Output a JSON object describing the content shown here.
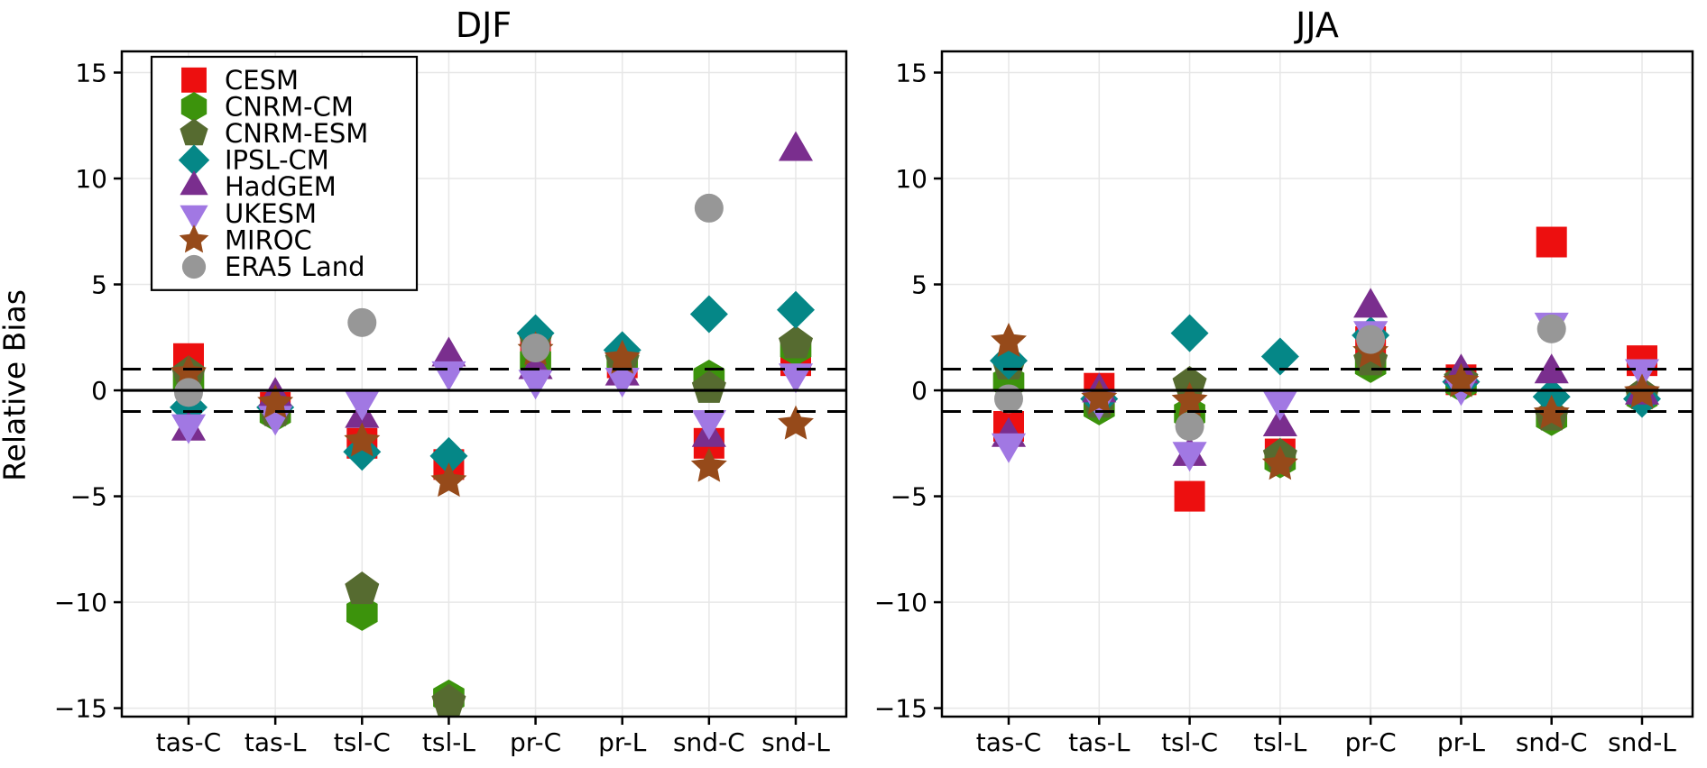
{
  "figure": {
    "ylabel": "Relative Bias",
    "background_color": "#ffffff",
    "axis_color": "#000000",
    "grid_color": "#e7e7e7"
  },
  "legend": {
    "position": "upper-left",
    "entries": [
      "CESM",
      "CNRM-CM",
      "CNRM-ESM",
      "IPSL-CM",
      "HadGEM",
      "UKESM",
      "MIROC",
      "ERA5 Land"
    ]
  },
  "chart_data": [
    {
      "type": "scatter",
      "title": "DJF",
      "ylabel": "Relative Bias",
      "categories": [
        "tas-C",
        "tas-L",
        "tsl-C",
        "tsl-L",
        "pr-C",
        "pr-L",
        "snd-C",
        "snd-L"
      ],
      "ylim": [
        -15.4,
        16.0
      ],
      "yticks": [
        15,
        10,
        5,
        0,
        -5,
        -10,
        -15
      ],
      "grid": true,
      "reference_lines": {
        "solid_y": 0,
        "dashed_y": [
          1,
          -1
        ]
      },
      "series": [
        {
          "name": "CESM",
          "marker": "square",
          "color": "#ed0f0f",
          "values": [
            1.5,
            -0.8,
            -2.5,
            -3.5,
            1.7,
            1.3,
            -2.5,
            1.4
          ]
        },
        {
          "name": "CNRM-CM",
          "marker": "hexagon",
          "color": "#3c930c",
          "values": [
            0.5,
            -1.1,
            -10.5,
            -14.5,
            1.4,
            1.5,
            0.6,
            2.0
          ]
        },
        {
          "name": "CNRM-ESM",
          "marker": "pentagon",
          "color": "#566b30",
          "values": [
            0.8,
            -1.0,
            -9.4,
            -14.7,
            2.4,
            1.4,
            0.1,
            2.2
          ]
        },
        {
          "name": "IPSL-CM",
          "marker": "diamond",
          "color": "#058787",
          "values": [
            -0.8,
            -0.8,
            -2.9,
            -3.1,
            2.7,
            1.9,
            3.6,
            3.8
          ]
        },
        {
          "name": "HadGEM",
          "marker": "triangle-up",
          "color": "#7a2e8e",
          "values": [
            -1.9,
            -0.3,
            -1.3,
            1.6,
            1.0,
            0.7,
            -2.2,
            11.3
          ]
        },
        {
          "name": "UKESM",
          "marker": "triangle-down",
          "color": "#a178e3",
          "values": [
            -1.6,
            -1.2,
            -0.5,
            0.9,
            0.5,
            0.6,
            -1.4,
            0.8
          ]
        },
        {
          "name": "MIROC",
          "marker": "star",
          "color": "#964a1a",
          "values": [
            0.8,
            -0.6,
            -2.4,
            -4.3,
            1.9,
            1.5,
            -3.6,
            -1.6
          ]
        },
        {
          "name": "ERA5 Land",
          "marker": "circle",
          "color": "#979797",
          "values": [
            -0.1,
            null,
            3.2,
            null,
            2.0,
            null,
            8.6,
            null
          ]
        }
      ]
    },
    {
      "type": "scatter",
      "title": "JJA",
      "ylabel": "Relative Bias",
      "categories": [
        "tas-C",
        "tas-L",
        "tsl-C",
        "tsl-L",
        "pr-C",
        "pr-L",
        "snd-C",
        "snd-L"
      ],
      "ylim": [
        -15.4,
        16.0
      ],
      "yticks": [
        15,
        10,
        5,
        0,
        -5,
        -10,
        -15
      ],
      "grid": true,
      "reference_lines": {
        "solid_y": 0,
        "dashed_y": [
          1,
          -1
        ]
      },
      "series": [
        {
          "name": "CESM",
          "marker": "square",
          "color": "#ed0f0f",
          "values": [
            -1.7,
            0.1,
            -5.0,
            -3.0,
            2.3,
            0.5,
            7.0,
            1.4
          ]
        },
        {
          "name": "CNRM-CM",
          "marker": "hexagon",
          "color": "#3c930c",
          "values": [
            0.4,
            -0.8,
            -1.1,
            -3.3,
            1.2,
            0.3,
            -1.3,
            -0.3
          ]
        },
        {
          "name": "CNRM-ESM",
          "marker": "pentagon",
          "color": "#566b30",
          "values": [
            1.2,
            -0.6,
            0.3,
            -3.1,
            1.4,
            0.5,
            -1.2,
            -0.2
          ]
        },
        {
          "name": "IPSL-CM",
          "marker": "diamond",
          "color": "#058787",
          "values": [
            1.4,
            -0.4,
            2.7,
            1.6,
            2.6,
            0.4,
            -0.3,
            -0.4
          ]
        },
        {
          "name": "HadGEM",
          "marker": "triangle-up",
          "color": "#7a2e8e",
          "values": [
            -2.2,
            -0.1,
            -3.1,
            -1.7,
            3.9,
            0.8,
            0.8,
            -0.2
          ]
        },
        {
          "name": "UKESM",
          "marker": "triangle-down",
          "color": "#a178e3",
          "values": [
            -2.5,
            -0.5,
            -2.9,
            -0.5,
            2.8,
            0.2,
            3.2,
            1.0
          ]
        },
        {
          "name": "MIROC",
          "marker": "star",
          "color": "#964a1a",
          "values": [
            2.3,
            -0.4,
            -0.5,
            -3.5,
            1.8,
            0.4,
            -1.1,
            -0.1
          ]
        },
        {
          "name": "ERA5 Land",
          "marker": "circle",
          "color": "#979797",
          "values": [
            -0.4,
            null,
            -1.7,
            null,
            2.4,
            null,
            2.9,
            null
          ]
        }
      ]
    }
  ]
}
